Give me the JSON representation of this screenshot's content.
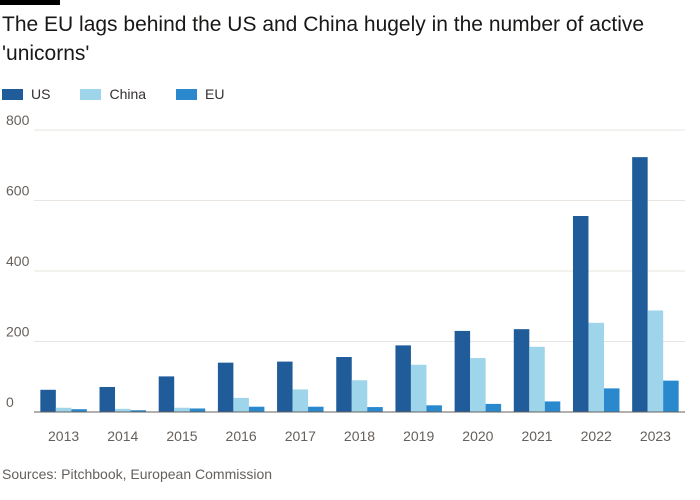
{
  "title": "The EU lags behind the US and China hugely in the number of active 'unicorns'",
  "source": "Sources: Pitchbook, European Commission",
  "colors": {
    "US": "#1f5c99",
    "China": "#9ed5eb",
    "EU": "#2a89cc",
    "grid": "#e9e4df",
    "axis": "#66605c"
  },
  "chart_data": {
    "type": "bar",
    "categories": [
      "2013",
      "2014",
      "2015",
      "2016",
      "2017",
      "2018",
      "2019",
      "2020",
      "2021",
      "2022",
      "2023"
    ],
    "series": [
      {
        "name": "US",
        "values": [
          63,
          71,
          101,
          140,
          143,
          156,
          189,
          230,
          235,
          556,
          723
        ]
      },
      {
        "name": "China",
        "values": [
          12,
          9,
          12,
          40,
          64,
          90,
          134,
          153,
          185,
          253,
          288
        ]
      },
      {
        "name": "EU",
        "values": [
          8,
          5,
          10,
          15,
          15,
          14,
          19,
          23,
          30,
          67,
          89
        ]
      }
    ],
    "yticks": [
      0,
      200,
      400,
      600,
      800
    ],
    "ylim": [
      0,
      800
    ],
    "grid": true,
    "legend": "top-left"
  }
}
